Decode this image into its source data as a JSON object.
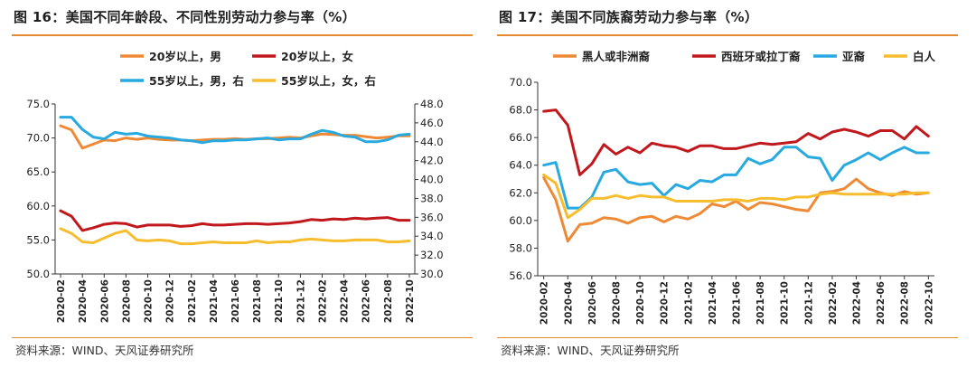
{
  "chart_data": [
    {
      "type": "line",
      "title": "图 16：美国不同年龄段、不同性别劳动力参与率（%）",
      "source": "资料来源：WIND、天风证券研究所",
      "categories": [
        "2020-02",
        "2020-03",
        "2020-04",
        "2020-05",
        "2020-06",
        "2020-07",
        "2020-08",
        "2020-09",
        "2020-10",
        "2020-11",
        "2020-12",
        "2021-01",
        "2021-02",
        "2021-03",
        "2021-04",
        "2021-05",
        "2021-06",
        "2021-07",
        "2021-08",
        "2021-09",
        "2021-10",
        "2021-11",
        "2021-12",
        "2022-01",
        "2022-02",
        "2022-03",
        "2022-04",
        "2022-05",
        "2022-06",
        "2022-07",
        "2022-08",
        "2022-09",
        "2022-10"
      ],
      "x_tick_labels": [
        "2020-02",
        "2020-04",
        "2020-06",
        "2020-08",
        "2020-10",
        "2020-12",
        "2021-02",
        "2021-04",
        "2021-06",
        "2021-08",
        "2021-10",
        "2021-12",
        "2022-02",
        "2022-04",
        "2022-06",
        "2022-08",
        "2022-10"
      ],
      "ylim": [
        50,
        75
      ],
      "yticks": [
        "50.0",
        "55.0",
        "60.0",
        "65.0",
        "70.0",
        "75.0"
      ],
      "y2lim": [
        30,
        48
      ],
      "y2ticks": [
        "30.0",
        "32.0",
        "34.0",
        "36.0",
        "38.0",
        "40.0",
        "42.0",
        "44.0",
        "46.0",
        "48.0"
      ],
      "grid": false,
      "legend_position": "top",
      "series": [
        {
          "name": "20岁以上，男",
          "color": "#ee8a35",
          "axis": "left",
          "values": [
            71.8,
            71.2,
            68.5,
            69.1,
            69.7,
            69.6,
            70.0,
            69.8,
            70.0,
            69.8,
            69.7,
            69.7,
            69.6,
            69.7,
            69.8,
            69.8,
            69.9,
            69.8,
            69.9,
            69.9,
            70.0,
            70.1,
            70.0,
            70.3,
            70.6,
            70.5,
            70.4,
            70.4,
            70.2,
            70.0,
            70.1,
            70.3,
            70.3
          ]
        },
        {
          "name": "20岁以上，女",
          "color": "#c0181c",
          "axis": "left",
          "values": [
            59.3,
            58.5,
            56.4,
            56.8,
            57.3,
            57.5,
            57.4,
            56.9,
            57.2,
            57.2,
            57.2,
            57.0,
            57.1,
            57.4,
            57.2,
            57.2,
            57.3,
            57.4,
            57.4,
            57.3,
            57.4,
            57.5,
            57.7,
            58.0,
            57.9,
            58.1,
            58.0,
            58.2,
            58.1,
            58.2,
            58.3,
            57.9,
            57.9
          ]
        },
        {
          "name": "55岁以上，男，右",
          "color": "#28a9e0",
          "axis": "right",
          "values": [
            46.6,
            46.6,
            45.3,
            44.5,
            44.3,
            45.0,
            44.8,
            44.9,
            44.6,
            44.5,
            44.4,
            44.2,
            44.1,
            43.9,
            44.1,
            44.1,
            44.2,
            44.2,
            44.3,
            44.4,
            44.2,
            44.3,
            44.3,
            44.8,
            45.2,
            45.0,
            44.6,
            44.5,
            44.0,
            44.0,
            44.2,
            44.7,
            44.8
          ]
        },
        {
          "name": "55岁以上，女，右",
          "color": "#f6bd2e",
          "axis": "right",
          "values": [
            34.8,
            34.3,
            33.4,
            33.3,
            33.8,
            34.3,
            34.6,
            33.6,
            33.5,
            33.6,
            33.5,
            33.2,
            33.2,
            33.3,
            33.4,
            33.3,
            33.3,
            33.3,
            33.5,
            33.3,
            33.4,
            33.4,
            33.6,
            33.7,
            33.6,
            33.5,
            33.5,
            33.6,
            33.6,
            33.6,
            33.4,
            33.4,
            33.5
          ]
        }
      ]
    },
    {
      "type": "line",
      "title": "图 17：美国不同族裔劳动力参与率（%）",
      "source": "资料来源：WIND、天风证券研究所",
      "categories": [
        "2020-02",
        "2020-03",
        "2020-04",
        "2020-05",
        "2020-06",
        "2020-07",
        "2020-08",
        "2020-09",
        "2020-10",
        "2020-11",
        "2020-12",
        "2021-01",
        "2021-02",
        "2021-03",
        "2021-04",
        "2021-05",
        "2021-06",
        "2021-07",
        "2021-08",
        "2021-09",
        "2021-10",
        "2021-11",
        "2021-12",
        "2022-01",
        "2022-02",
        "2022-03",
        "2022-04",
        "2022-05",
        "2022-06",
        "2022-07",
        "2022-08",
        "2022-09",
        "2022-10"
      ],
      "x_tick_labels": [
        "2020-02",
        "2020-04",
        "2020-06",
        "2020-08",
        "2020-10",
        "2020-12",
        "2021-02",
        "2021-04",
        "2021-06",
        "2021-08",
        "2021-10",
        "2021-12",
        "2022-02",
        "2022-04",
        "2022-06",
        "2022-08",
        "2022-10"
      ],
      "ylim": [
        56,
        70
      ],
      "yticks": [
        "56.0",
        "58.0",
        "60.0",
        "62.0",
        "64.0",
        "66.0",
        "68.0",
        "70.0"
      ],
      "grid": false,
      "legend_position": "top",
      "series": [
        {
          "name": "黑人或非洲裔",
          "color": "#ee8a35",
          "values": [
            63.1,
            61.5,
            58.5,
            59.7,
            59.8,
            60.2,
            60.1,
            59.8,
            60.2,
            60.3,
            59.9,
            60.3,
            60.1,
            60.5,
            61.2,
            61.0,
            61.4,
            60.8,
            61.3,
            61.2,
            61.0,
            60.8,
            60.7,
            62.0,
            62.1,
            62.3,
            63.0,
            62.3,
            62.0,
            61.8,
            62.1,
            61.9,
            62.0
          ]
        },
        {
          "name": "西班牙或拉丁裔",
          "color": "#c0181c",
          "values": [
            67.9,
            68.0,
            66.9,
            63.3,
            64.1,
            65.5,
            64.8,
            65.3,
            64.9,
            65.6,
            65.4,
            65.3,
            65.0,
            65.4,
            65.4,
            65.2,
            65.2,
            65.4,
            65.6,
            65.5,
            65.6,
            65.7,
            66.3,
            65.9,
            66.4,
            66.6,
            66.4,
            66.1,
            66.5,
            66.5,
            65.9,
            66.8,
            66.1
          ]
        },
        {
          "name": "亚裔",
          "color": "#28a9e0",
          "values": [
            64.0,
            64.2,
            60.9,
            60.9,
            61.7,
            63.5,
            63.7,
            62.8,
            62.6,
            62.7,
            61.8,
            62.6,
            62.3,
            62.9,
            62.8,
            63.3,
            63.3,
            64.5,
            64.1,
            64.4,
            65.3,
            65.3,
            64.6,
            64.5,
            62.9,
            64.0,
            64.4,
            64.9,
            64.4,
            64.9,
            65.3,
            64.9,
            64.9
          ]
        },
        {
          "name": "白人",
          "color": "#f6bd2e",
          "values": [
            63.3,
            62.7,
            60.2,
            60.8,
            61.6,
            61.6,
            61.8,
            61.6,
            61.8,
            61.7,
            61.7,
            61.4,
            61.4,
            61.4,
            61.4,
            61.5,
            61.5,
            61.4,
            61.6,
            61.6,
            61.5,
            61.7,
            61.7,
            61.9,
            62.0,
            61.9,
            61.9,
            61.9,
            61.9,
            61.9,
            61.9,
            62.0,
            62.0
          ]
        }
      ]
    }
  ]
}
